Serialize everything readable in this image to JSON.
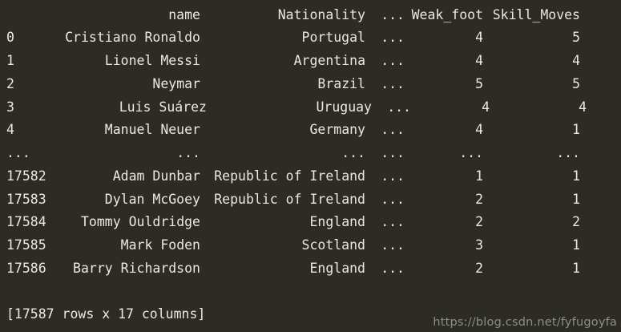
{
  "colors": {
    "background": "#2c2b26",
    "text": "#ece9dc",
    "watermark_text": "#8e8e89"
  },
  "console": {
    "header": {
      "name": "name",
      "nationality": "Nationality",
      "ellipsis": "...",
      "weak_foot": "Weak_foot",
      "skill_moves": "Skill_Moves"
    },
    "rows": [
      {
        "idx": "0",
        "name": "Cristiano Ronaldo",
        "nationality": "Portugal",
        "ellipsis": "...",
        "weak_foot": "4",
        "skill_moves": "5"
      },
      {
        "idx": "1",
        "name": "Lionel Messi",
        "nationality": "Argentina",
        "ellipsis": "...",
        "weak_foot": "4",
        "skill_moves": "4"
      },
      {
        "idx": "2",
        "name": "Neymar",
        "nationality": "Brazil",
        "ellipsis": "...",
        "weak_foot": "5",
        "skill_moves": "5"
      },
      {
        "idx": "3",
        "name": "Luis Suárez",
        "nationality": "Uruguay",
        "ellipsis": "...",
        "weak_foot": "4",
        "skill_moves": "4",
        "shift": 8
      },
      {
        "idx": "4",
        "name": "Manuel Neuer",
        "nationality": "Germany",
        "ellipsis": "...",
        "weak_foot": "4",
        "skill_moves": "1"
      },
      {
        "idx": "...",
        "name": "...",
        "nationality": "...",
        "ellipsis": "...",
        "weak_foot": "...",
        "skill_moves": "..."
      },
      {
        "idx": "17582",
        "name": "Adam Dunbar",
        "nationality": "Republic of Ireland",
        "ellipsis": "...",
        "weak_foot": "1",
        "skill_moves": "1"
      },
      {
        "idx": "17583",
        "name": "Dylan McGoey",
        "nationality": "Republic of Ireland",
        "ellipsis": "...",
        "weak_foot": "2",
        "skill_moves": "1"
      },
      {
        "idx": "17584",
        "name": "Tommy Ouldridge",
        "nationality": "England",
        "ellipsis": "...",
        "weak_foot": "2",
        "skill_moves": "2"
      },
      {
        "idx": "17585",
        "name": "Mark Foden",
        "nationality": "Scotland",
        "ellipsis": "...",
        "weak_foot": "3",
        "skill_moves": "1"
      },
      {
        "idx": "17586",
        "name": "Barry Richardson",
        "nationality": "England",
        "ellipsis": "...",
        "weak_foot": "2",
        "skill_moves": "1"
      }
    ],
    "footer": "[17587 rows x 17 columns]"
  },
  "watermark": {
    "text": "https://blog.csdn.net/fyfugoyfa"
  }
}
